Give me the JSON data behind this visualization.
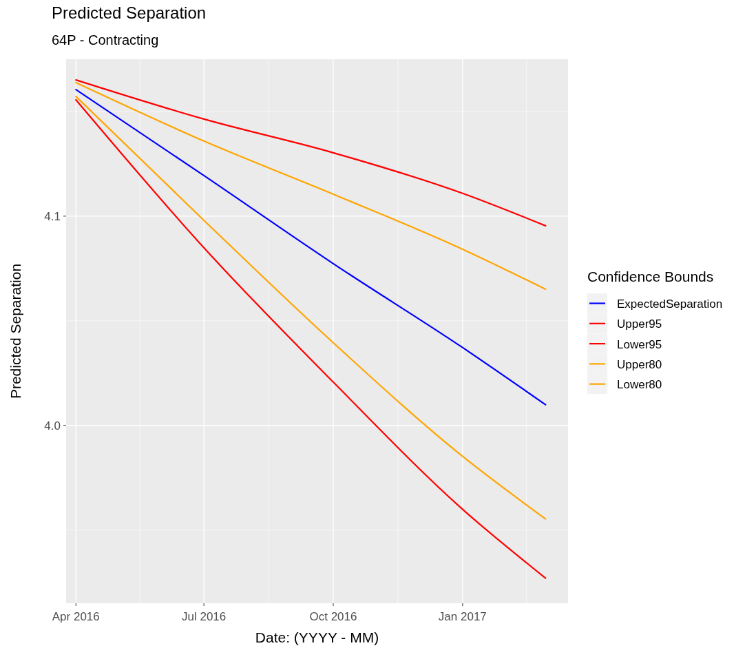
{
  "chart_data": {
    "type": "line",
    "title": "Predicted Separation",
    "subtitle": "64P - Contracting",
    "xlabel": "Date: (YYYY - MM)",
    "ylabel": "Predicted Separation",
    "legend_title": "Confidence Bounds",
    "x": [
      "2016-04-01",
      "2016-07-01",
      "2016-10-01",
      "2017-01-01",
      "2017-03-01"
    ],
    "series": [
      {
        "name": "ExpectedSeparation",
        "color": "#0000ff",
        "values": [
          4.1605,
          4.1194,
          4.0773,
          4.0372,
          4.0099
        ]
      },
      {
        "name": "Upper95",
        "color": "#ff0000",
        "values": [
          4.1651,
          4.1464,
          4.1303,
          4.1109,
          4.0954
        ]
      },
      {
        "name": "Lower95",
        "color": "#ff0000",
        "values": [
          4.1556,
          4.0849,
          4.0207,
          3.9599,
          3.927
        ]
      },
      {
        "name": "Upper80",
        "color": "#ffa500",
        "values": [
          4.1638,
          4.1359,
          4.1105,
          4.0842,
          4.0651
        ]
      },
      {
        "name": "Lower80",
        "color": "#ffa500",
        "values": [
          4.1572,
          4.098,
          4.0395,
          3.9852,
          3.9553
        ]
      }
    ],
    "xlim": [
      "2016-03-25",
      "2017-03-17"
    ],
    "xticks": [
      {
        "value": "2016-04-01",
        "label": "Apr 2016"
      },
      {
        "value": "2016-07-01",
        "label": "Jul 2016"
      },
      {
        "value": "2016-10-01",
        "label": "Oct 2016"
      },
      {
        "value": "2017-01-01",
        "label": "Jan 2017"
      }
    ],
    "ylim": [
      3.915,
      4.175
    ],
    "yticks": [
      {
        "value": 4.0,
        "label": "4.0"
      },
      4.1
    ],
    "grid": true,
    "legend": "right",
    "line_style": "solid",
    "marker": "none"
  }
}
